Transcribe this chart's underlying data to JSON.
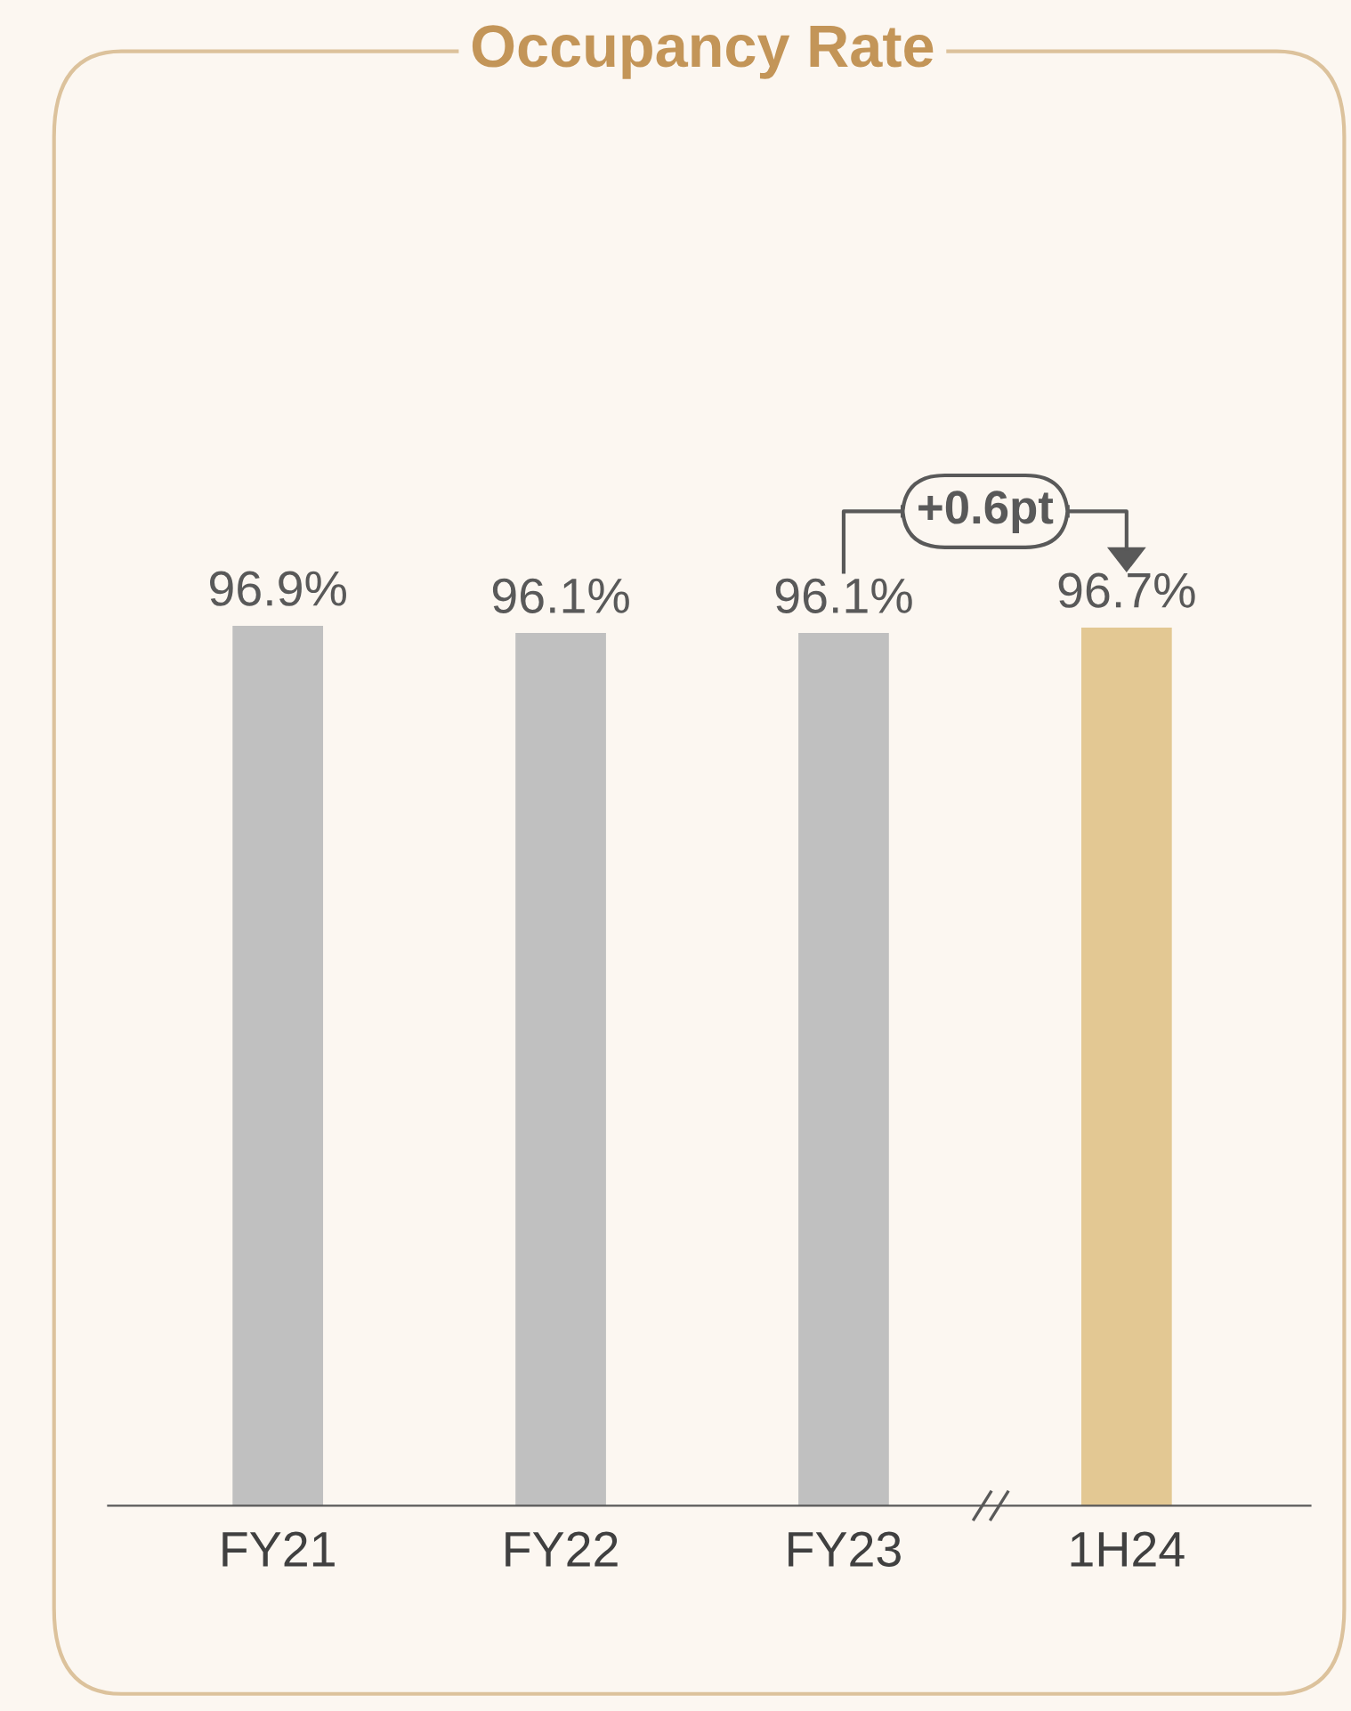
{
  "chart_data": {
    "type": "bar",
    "title": "Occupancy Rate",
    "categories": [
      "FY21",
      "FY22",
      "FY23",
      "1H24"
    ],
    "values": [
      96.9,
      96.1,
      96.1,
      96.7
    ],
    "colors": [
      "#c0c0c0",
      "#c0c0c0",
      "#c0c0c0",
      "#e3c893"
    ],
    "value_labels": [
      "96.9%",
      "96.1%",
      "96.1%",
      "96.7%"
    ],
    "annotations": [
      "+0.6pt"
    ],
    "grid": false,
    "legend": false,
    "tick_labels": "x"
  }
}
